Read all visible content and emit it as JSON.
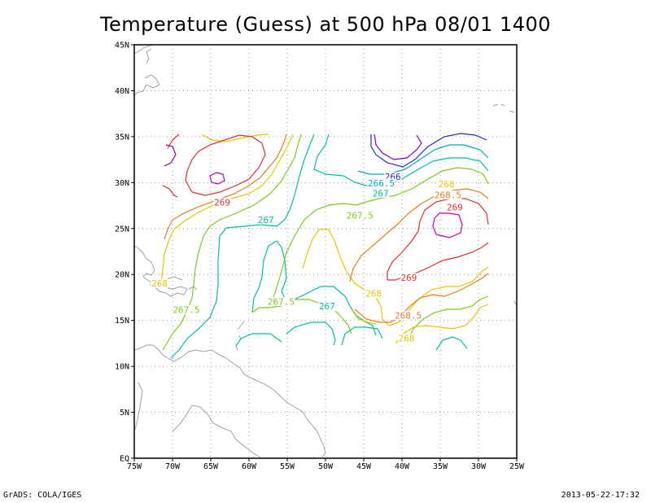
{
  "title": "Temperature (Guess) at 500 hPa 08/01 1400",
  "footer": {
    "left": "GrADS: COLA/IGES",
    "right": "2013-05-22-17:32"
  },
  "map": {
    "lon_range": [
      -75,
      -25
    ],
    "lat_range": [
      0,
      45
    ],
    "x_ticks": [
      {
        "v": -75,
        "label": "75W"
      },
      {
        "v": -70,
        "label": "70W"
      },
      {
        "v": -65,
        "label": "65W"
      },
      {
        "v": -60,
        "label": "60W"
      },
      {
        "v": -55,
        "label": "55W"
      },
      {
        "v": -50,
        "label": "50W"
      },
      {
        "v": -45,
        "label": "45W"
      },
      {
        "v": -40,
        "label": "40W"
      },
      {
        "v": -35,
        "label": "35W"
      },
      {
        "v": -30,
        "label": "30W"
      },
      {
        "v": -25,
        "label": "25W"
      }
    ],
    "y_ticks": [
      {
        "v": 0,
        "label": "EQ"
      },
      {
        "v": 5,
        "label": "5N"
      },
      {
        "v": 10,
        "label": "10N"
      },
      {
        "v": 15,
        "label": "15N"
      },
      {
        "v": 20,
        "label": "20N"
      },
      {
        "v": 25,
        "label": "25N"
      },
      {
        "v": 30,
        "label": "30N"
      },
      {
        "v": 35,
        "label": "35N"
      },
      {
        "v": 40,
        "label": "40N"
      },
      {
        "v": 45,
        "label": "45N"
      }
    ],
    "grid": true,
    "colors": {
      "coast": "#a0a0a0",
      "grid": "#9a9a9a",
      "level_265_5": "#8000c0",
      "level_266": "#2030d0",
      "level_266_5": "#00a8c8",
      "level_267": "#00c0a0",
      "level_267_5": "#80c820",
      "level_268": "#e0c800",
      "level_268_5": "#e08020",
      "level_269": "#e03030",
      "level_269_5": "#c000a0"
    },
    "contour_labels": [
      {
        "text": "266",
        "lon": -41.2,
        "lat": 30.6,
        "color": "#2030d0"
      },
      {
        "text": "266.5",
        "lon": -42.7,
        "lat": 29.9,
        "color": "#00a8c8"
      },
      {
        "text": "267",
        "lon": -42.8,
        "lat": 28.8,
        "color": "#00c0a0"
      },
      {
        "text": "267",
        "lon": -57.8,
        "lat": 25.9,
        "color": "#00c0a0"
      },
      {
        "text": "267",
        "lon": -49.8,
        "lat": 16.5,
        "color": "#00c0a0"
      },
      {
        "text": "267.5",
        "lon": -45.5,
        "lat": 26.4,
        "color": "#80c820"
      },
      {
        "text": "267.5",
        "lon": -55.8,
        "lat": 17.0,
        "color": "#80c820"
      },
      {
        "text": "267.5",
        "lon": -68.2,
        "lat": 16.1,
        "color": "#80c820"
      },
      {
        "text": "268",
        "lon": -34.2,
        "lat": 29.8,
        "color": "#e0c800"
      },
      {
        "text": "268",
        "lon": -71.7,
        "lat": 19.0,
        "color": "#e0c800"
      },
      {
        "text": "268",
        "lon": -43.7,
        "lat": 17.9,
        "color": "#e0c800"
      },
      {
        "text": "268",
        "lon": -39.4,
        "lat": 13.0,
        "color": "#e0c800"
      },
      {
        "text": "268.5",
        "lon": -34.0,
        "lat": 28.6,
        "color": "#e08020"
      },
      {
        "text": "268.5",
        "lon": -39.2,
        "lat": 15.5,
        "color": "#e08020"
      },
      {
        "text": "269",
        "lon": -33.1,
        "lat": 27.3,
        "color": "#e03030"
      },
      {
        "text": "269",
        "lon": -63.5,
        "lat": 27.8,
        "color": "#e03030"
      },
      {
        "text": "269",
        "lon": -39.1,
        "lat": 19.6,
        "color": "#e03030"
      }
    ]
  }
}
